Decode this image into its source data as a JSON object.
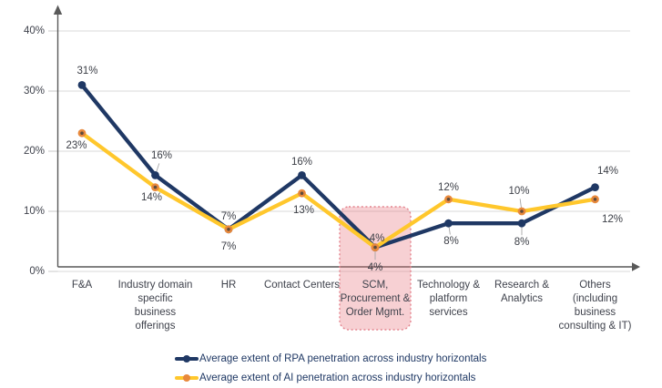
{
  "chart_data": {
    "type": "line",
    "title": "",
    "xlabel": "",
    "ylabel": "",
    "categories": [
      "F&A",
      "Industry domain specific business offerings",
      "HR",
      "Contact Centers",
      "SCM, Procurement & Order Mgmt.",
      "Technology & platform services",
      "Research & Analytics",
      "Others (including business consulting & IT)"
    ],
    "series": [
      {
        "name": "Average extent of RPA penetration across industry horizontals",
        "color": "#1F3864",
        "marker_color": "#1F3864",
        "values": [
          31,
          16,
          7,
          16,
          4,
          8,
          8,
          14
        ],
        "data_labels": [
          "31%",
          "16%",
          "7%",
          "16%",
          "4%",
          "8%",
          "8%",
          "14%"
        ]
      },
      {
        "name": "Average extent of AI penetration across industry horizontals",
        "color": "#FFC72C",
        "marker_color": "#E8893C",
        "marker_center_color": "#5E4B3C",
        "values": [
          23,
          14,
          7,
          13,
          4,
          12,
          10,
          12
        ],
        "data_labels": [
          "23%",
          "14%",
          "7%",
          "13%",
          "4%",
          "12%",
          "10%",
          "12%"
        ]
      }
    ],
    "y_ticks": [
      "40%",
      "30%",
      "20%",
      "10%",
      "0%"
    ],
    "y_tick_values": [
      40,
      30,
      20,
      10,
      0
    ],
    "ylim": [
      0,
      45
    ],
    "grid": true,
    "gridline_color": "#d9d9d9",
    "axis_color": "#595959",
    "legend_position": "bottom",
    "highlight": {
      "category": "SCM, Procurement & Order Mgmt.",
      "fill": "#E7707A",
      "fill_opacity": 0.33,
      "border": "#E4848E"
    }
  }
}
